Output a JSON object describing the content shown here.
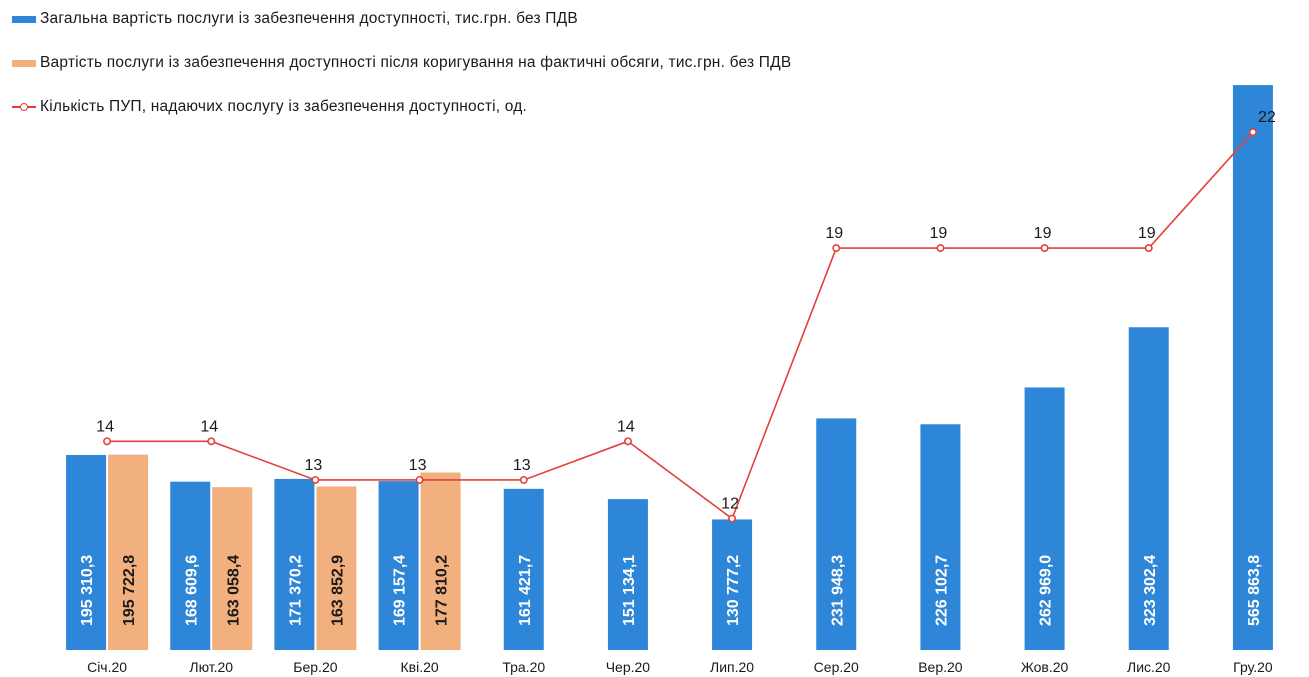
{
  "chart_data": {
    "type": "bar",
    "categories": [
      "Січ.20",
      "Лют.20",
      "Бер.20",
      "Кві.20",
      "Тра.20",
      "Чер.20",
      "Лип.20",
      "Сер.20",
      "Вер.20",
      "Жов.20",
      "Лис.20",
      "Гру.20"
    ],
    "series": [
      {
        "name": "Загальна вартість послуги із забезпечення доступності, тис.грн. без ПДВ",
        "type": "bar",
        "color": "#2e86d8",
        "values": [
          195310.3,
          168609.6,
          171370.2,
          169157.4,
          161421.7,
          151134.1,
          130777.2,
          231948.3,
          226102.7,
          262969.0,
          323302.4,
          565863.8
        ],
        "labels": [
          "195 310,3",
          "168 609,6",
          "171 370,2",
          "169 157,4",
          "161 421,7",
          "151 134,1",
          "130 777,2",
          "231 948,3",
          "226 102,7",
          "262 969,0",
          "323 302,4",
          "565 863,8"
        ]
      },
      {
        "name": "Вартість послуги із забезпечення доступності після коригування на фактичні обсяги, тис.грн. без ПДВ",
        "type": "bar",
        "color": "#f2b07e",
        "values": [
          195722.8,
          163058.4,
          163852.9,
          177810.2,
          null,
          null,
          null,
          null,
          null,
          null,
          null,
          null
        ],
        "labels": [
          "195 722,8",
          "163 058,4",
          "163 852,9",
          "177 810,2",
          null,
          null,
          null,
          null,
          null,
          null,
          null,
          null
        ]
      },
      {
        "name": "Кількість ПУП, надаючих послугу із забезпечення доступності, од.",
        "type": "line",
        "color": "#e2413a",
        "values": [
          14,
          14,
          13,
          13,
          13,
          14,
          12,
          19,
          19,
          19,
          19,
          22
        ],
        "labels": [
          "14",
          "14",
          "13",
          "13",
          "13",
          "14",
          "12",
          "19",
          "19",
          "19",
          "19",
          "22"
        ]
      }
    ],
    "bar_axis_range": [
      0,
      600000
    ],
    "line_axis_range": [
      8.6,
      24.1
    ],
    "grid": false,
    "legend_position": "top-left"
  }
}
